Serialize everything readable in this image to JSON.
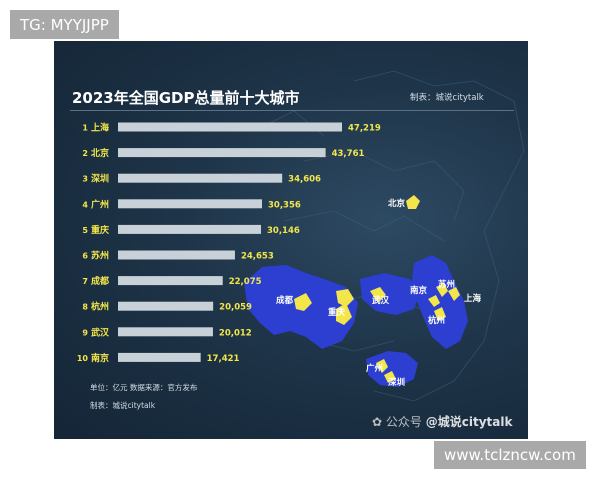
{
  "watermark_top": "TG: MYYJJPP",
  "watermark_bottom": "www.tclzncw.com",
  "chart_data": {
    "type": "bar",
    "orientation": "horizontal",
    "title": "2023年全国GDP总量前十大城市",
    "credit_top": "制表：城说citytalk",
    "categories": [
      "上海",
      "北京",
      "深圳",
      "广州",
      "重庆",
      "苏州",
      "成都",
      "杭州",
      "武汉",
      "南京"
    ],
    "ranks": [
      "1",
      "2",
      "3",
      "4",
      "5",
      "6",
      "7",
      "8",
      "9",
      "10"
    ],
    "values": [
      47219,
      43761,
      34606,
      30356,
      30146,
      24653,
      22075,
      20059,
      20012,
      17421
    ],
    "value_labels": [
      "47,219",
      "43,761",
      "34,606",
      "30,356",
      "30,146",
      "24,653",
      "22,075",
      "20,059",
      "20,012",
      "17,421"
    ],
    "unit_note": "单位：亿元    数据来源：官方发布",
    "credit_bottom": "制表：城说citytalk",
    "bar_color": "#c9d1d8",
    "label_color": "#f2e64a",
    "map_labels": [
      "北京",
      "苏州",
      "南京",
      "上海",
      "成都",
      "武汉",
      "重庆",
      "杭州",
      "广州",
      "深圳"
    ],
    "social_prefix": "公众号",
    "social_handle": "@城说citytalk"
  }
}
